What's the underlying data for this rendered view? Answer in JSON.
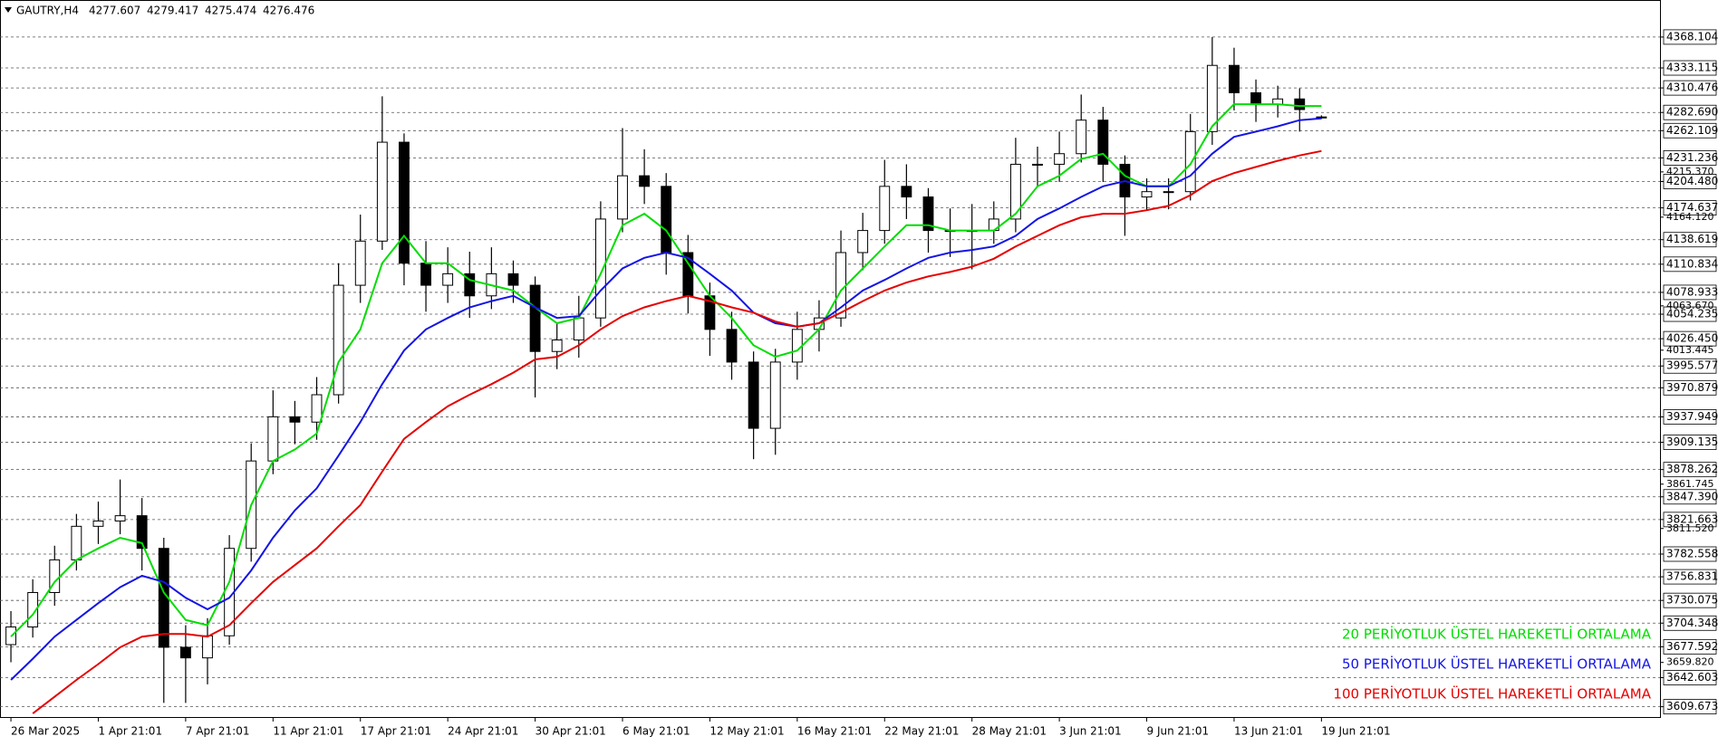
{
  "chart_data": {
    "type": "candlestick",
    "symbol": "GAUTRY,H4",
    "candles": {
      "open": [
        3680,
        3700,
        3739,
        3776,
        3814,
        3820,
        3826,
        3789,
        3677,
        3665,
        3690,
        3789,
        3888,
        3938,
        3932,
        3963,
        4087,
        4137,
        4249,
        4112,
        4087,
        4100,
        4075,
        4100,
        4087,
        4012,
        4025,
        4050,
        4162,
        4211,
        4199,
        4124,
        4075,
        4037,
        4000,
        3925,
        4000,
        4037,
        4050,
        4124,
        4149,
        4199,
        4187,
        4149,
        4149,
        4149,
        4162,
        4224,
        4224,
        4236,
        4274,
        4224,
        4187,
        4193,
        4193,
        4261,
        4336,
        4305,
        4292,
        4298,
        4277.607
      ],
      "high": [
        3718,
        3754,
        3792,
        3828,
        3842,
        3867,
        3846,
        3801,
        3702,
        3710,
        3804,
        3908,
        3968,
        3956,
        3983,
        4112,
        4167,
        4301,
        4259,
        4137,
        4130,
        4125,
        4130,
        4115,
        4097,
        4045,
        4075,
        4182,
        4265,
        4241,
        4214,
        4144,
        4090,
        4057,
        4012,
        4015,
        4057,
        4070,
        4149,
        4169,
        4229,
        4224,
        4197,
        4174,
        4179,
        4182,
        4254,
        4244,
        4261,
        4303,
        4289,
        4234,
        4208,
        4208,
        4281,
        4368,
        4356,
        4320,
        4313,
        4310,
        4279.417
      ],
      "low": [
        3660,
        3688,
        3724,
        3764,
        3794,
        3805,
        3764,
        3614,
        3614,
        3635,
        3680,
        3774,
        3873,
        3907,
        3912,
        3953,
        4067,
        4127,
        4087,
        4057,
        4067,
        4050,
        4060,
        4067,
        3960,
        3992,
        4005,
        4040,
        4147,
        4179,
        4099,
        4055,
        4007,
        3980,
        3890,
        3895,
        3980,
        4012,
        4040,
        4104,
        4134,
        4162,
        4124,
        4119,
        4105,
        4134,
        4147,
        4199,
        4204,
        4226,
        4204,
        4143,
        4172,
        4173,
        4183,
        4246,
        4285,
        4272,
        4277,
        4261,
        4275.474
      ],
      "close": [
        3700,
        3739,
        3776,
        3814,
        3820,
        3826,
        3789,
        3677,
        3665,
        3690,
        3789,
        3888,
        3938,
        3932,
        3963,
        4087,
        4137,
        4249,
        4112,
        4087,
        4100,
        4075,
        4100,
        4087,
        4012,
        4025,
        4050,
        4162,
        4211,
        4199,
        4124,
        4075,
        4037,
        4000,
        3925,
        4000,
        4037,
        4050,
        4124,
        4149,
        4199,
        4187,
        4149,
        4149,
        4149,
        4162,
        4224,
        4224,
        4236,
        4274,
        4224,
        4187,
        4193,
        4193,
        4261,
        4336,
        4305,
        4292,
        4298,
        4286,
        4276.476
      ]
    },
    "series": [
      {
        "name": "20 PERİYOTLUK ÜSTEL HAREKETLİ ORTALAMA",
        "color": "#00dd00",
        "values": [
          3689,
          3714,
          3751,
          3776,
          3789,
          3801,
          3795,
          3739,
          3708,
          3702,
          3751,
          3838,
          3888,
          3901,
          3919,
          4000,
          4037,
          4112,
          4143,
          4112,
          4112,
          4093,
          4087,
          4081,
          4062,
          4044,
          4050,
          4100,
          4155,
          4168,
          4149,
          4112,
          4075,
          4050,
          4019,
          4006,
          4013,
          4037,
          4081,
          4106,
          4131,
          4155,
          4155,
          4149,
          4149,
          4149,
          4168,
          4199,
          4211,
          4230,
          4236,
          4211,
          4199,
          4199,
          4224,
          4267,
          4292,
          4292,
          4292,
          4290,
          4290
        ]
      },
      {
        "name": "50 PERİYOTLUK ÜSTEL HAREKETLİ ORTALAMA",
        "color": "#1414e6",
        "values": [
          3640,
          3664,
          3689,
          3708,
          3727,
          3745,
          3758,
          3751,
          3733,
          3720,
          3733,
          3764,
          3801,
          3832,
          3857,
          3894,
          3932,
          3975,
          4013,
          4037,
          4050,
          4062,
          4069,
          4075,
          4062,
          4050,
          4052,
          4081,
          4106,
          4118,
          4124,
          4118,
          4100,
          4081,
          4056,
          4044,
          4040,
          4044,
          4062,
          4081,
          4093,
          4106,
          4118,
          4124,
          4127,
          4131,
          4143,
          4162,
          4174,
          4187,
          4199,
          4205,
          4199,
          4199,
          4211,
          4236,
          4255,
          4261,
          4267,
          4274,
          4276
        ]
      },
      {
        "name": "100 PERİYOTLUK ÜSTEL HAREKETLİ ORTALAMA",
        "color": "#e60000",
        "values": [
          null,
          3602,
          3621,
          3640,
          3658,
          3677,
          3689,
          3692,
          3692,
          3689,
          3702,
          3727,
          3751,
          3770,
          3789,
          3814,
          3838,
          3876,
          3913,
          3932,
          3950,
          3963,
          3975,
          3988,
          4003,
          4006,
          4019,
          4037,
          4052,
          4062,
          4069,
          4075,
          4069,
          4062,
          4056,
          4046,
          4040,
          4044,
          4056,
          4069,
          4081,
          4090,
          4097,
          4102,
          4108,
          4117,
          4131,
          4143,
          4155,
          4164,
          4168,
          4168,
          4172,
          4177,
          4189,
          4205,
          4214,
          4221,
          4228,
          4234,
          4239
        ]
      }
    ],
    "xlim": [
      -0.5,
      75.5
    ],
    "xticks": [
      {
        "value": 0,
        "label": "26 Mar 2025"
      },
      {
        "value": 4,
        "label": "1 Apr 21:01"
      },
      {
        "value": 8,
        "label": "7 Apr 21:01"
      },
      {
        "value": 12,
        "label": "11 Apr 21:01"
      },
      {
        "value": 16,
        "label": "17 Apr 21:01"
      },
      {
        "value": 20,
        "label": "24 Apr 21:01"
      },
      {
        "value": 24,
        "label": "30 Apr 21:01"
      },
      {
        "value": 28,
        "label": "6 May 21:01"
      },
      {
        "value": 32,
        "label": "12 May 21:01"
      },
      {
        "value": 36,
        "label": "16 May 21:01"
      },
      {
        "value": 40,
        "label": "22 May 21:01"
      },
      {
        "value": 44,
        "label": "28 May 21:01"
      },
      {
        "value": 48,
        "label": "3 Jun 21:01"
      },
      {
        "value": 52,
        "label": "9 Jun 21:01"
      },
      {
        "value": 56,
        "label": "13 Jun 21:01"
      },
      {
        "value": 60,
        "label": "19 Jun 21:01"
      }
    ],
    "ylim": [
      3598,
      4408
    ],
    "yticks": [
      4368.104,
      4333.115,
      4310.476,
      {
        "value": 4282.69,
        "label": "4282.690"
      },
      4262.109,
      4231.236,
      {
        "value": 4204.48,
        "label": "4204.480"
      },
      4174.637,
      4138.619,
      4110.834,
      4078.933,
      4054.235,
      {
        "value": 4026.45,
        "label": "4026.450"
      },
      3995.577,
      3970.879,
      3937.949,
      3909.135,
      3878.262,
      {
        "value": 3847.39,
        "label": "3847.390"
      },
      3821.663,
      3782.558,
      3756.831,
      3730.075,
      3704.348,
      3677.592,
      3642.603,
      3609.673
    ],
    "minor_yticks": [
      {
        "value": 4215.37,
        "label": "4215.370"
      },
      {
        "value": 4164.12,
        "label": "4164.120"
      },
      {
        "value": 4063.67,
        "label": "4063.670"
      },
      4013.445,
      3861.745,
      {
        "value": 3811.52,
        "label": "3811.520"
      },
      {
        "value": 3659.82,
        "label": "3659.820"
      }
    ],
    "grid": true,
    "legend": "bottom-right"
  }
}
